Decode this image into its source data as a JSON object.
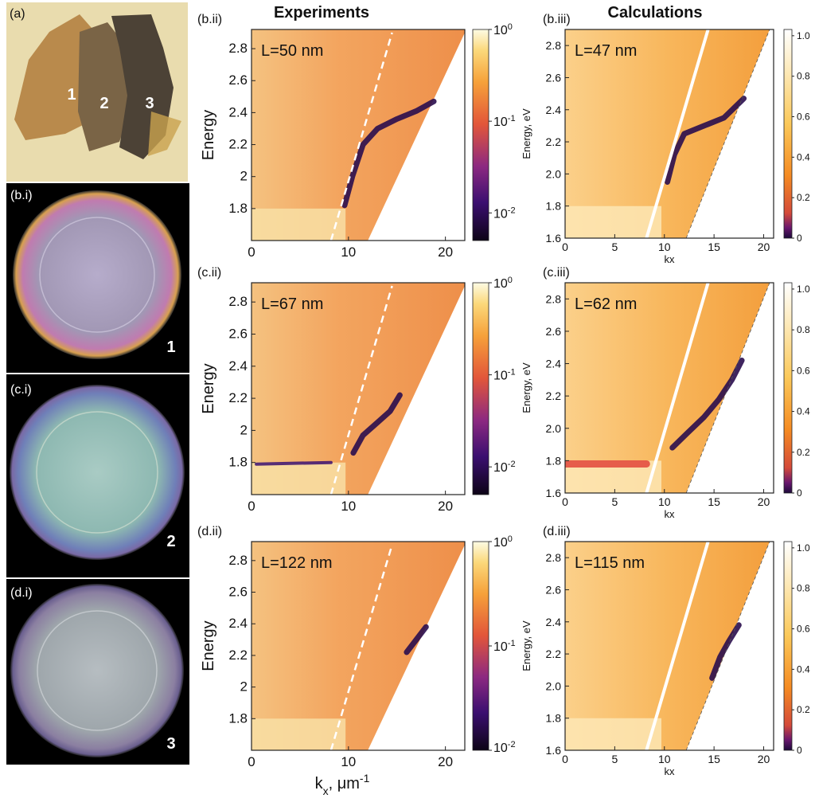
{
  "headers": {
    "experiments": "Experiments",
    "calculations": "Calculations"
  },
  "photos": [
    {
      "tag": "(a)",
      "flake_labels": [
        "1",
        "2",
        "3"
      ]
    },
    {
      "tag": "(b.i)",
      "number": "1",
      "tint": "#a79bb3"
    },
    {
      "tag": "(c.i)",
      "number": "2",
      "tint": "#8fb5ae"
    },
    {
      "tag": "(d.i)",
      "number": "3",
      "tint": "#9aa3a8"
    }
  ],
  "colorscale": {
    "log_ticks": [
      "10",
      "10",
      "10"
    ],
    "log_exponents": [
      "0",
      "-1",
      "-2"
    ],
    "linear_ticks": [
      "1.0",
      "0.8",
      "0.6",
      "0.4",
      "0.2",
      "0"
    ]
  },
  "chart_data": [
    {
      "type": "heatmap",
      "tag": "(b.ii)",
      "title": "L=50 nm",
      "xlabel": "",
      "ylabel": "Energy",
      "xlim": [
        0,
        22
      ],
      "ylim": [
        1.6,
        2.92
      ],
      "xticks": [
        "0",
        "10",
        "20"
      ],
      "yticks": [
        "1.8",
        "2",
        "2.2",
        "2.4",
        "2.6",
        "2.8"
      ],
      "colorbar": "log",
      "colorbar_range": [
        0.005,
        1
      ],
      "light_line_dashed": {
        "x": [
          8.2,
          14.5
        ],
        "y": [
          1.6,
          2.9
        ]
      },
      "mode_ridge": {
        "x": [
          9.6,
          10.4,
          11.5,
          13.0,
          15.0,
          17.0,
          18.8
        ],
        "y": [
          1.82,
          2.0,
          2.2,
          2.3,
          2.36,
          2.41,
          2.47
        ]
      }
    },
    {
      "type": "heatmap",
      "tag": "(c.ii)",
      "title": "L=67 nm",
      "xlabel": "",
      "ylabel": "Energy",
      "xlim": [
        0,
        22
      ],
      "ylim": [
        1.6,
        2.92
      ],
      "xticks": [
        "0",
        "10",
        "20"
      ],
      "yticks": [
        "1.8",
        "2",
        "2.2",
        "2.4",
        "2.6",
        "2.8"
      ],
      "colorbar": "log",
      "colorbar_range": [
        0.005,
        1
      ],
      "light_line_dashed": {
        "x": [
          8.2,
          14.5
        ],
        "y": [
          1.6,
          2.9
        ]
      },
      "mode_ridge": {
        "x": [
          10.5,
          11.5,
          13.0,
          14.3,
          15.3
        ],
        "y": [
          1.86,
          1.97,
          2.05,
          2.12,
          2.22
        ]
      },
      "flat_band": {
        "x": [
          0.5,
          8.2
        ],
        "y": [
          1.79,
          1.8
        ]
      }
    },
    {
      "type": "heatmap",
      "tag": "(d.ii)",
      "title": "L=122 nm",
      "xlabel": "k_x, μm^-1",
      "ylabel": "Energy",
      "xlim": [
        0,
        22
      ],
      "ylim": [
        1.6,
        2.92
      ],
      "xticks": [
        "0",
        "10",
        "20"
      ],
      "yticks": [
        "1.8",
        "2",
        "2.2",
        "2.4",
        "2.6",
        "2.8"
      ],
      "colorbar": "log",
      "colorbar_range": [
        0.01,
        1
      ],
      "light_line_dashed": {
        "x": [
          8.2,
          14.5
        ],
        "y": [
          1.6,
          2.9
        ]
      },
      "mode_ridge": {
        "x": [
          16.0,
          17.0,
          18.0
        ],
        "y": [
          2.22,
          2.3,
          2.38
        ]
      }
    },
    {
      "type": "heatmap",
      "tag": "(b.iii)",
      "title": "L=47 nm",
      "xlabel": "kx",
      "ylabel": "Energy, eV",
      "xlim": [
        0,
        21
      ],
      "ylim": [
        1.6,
        2.9
      ],
      "xticks": [
        "0",
        "5",
        "10",
        "15",
        "20"
      ],
      "yticks": [
        "1.6",
        "1.8",
        "2.0",
        "2.2",
        "2.4",
        "2.6",
        "2.8"
      ],
      "colorbar": "linear",
      "colorbar_range": [
        0,
        1
      ],
      "light_line_solid": {
        "x": [
          8.2,
          14.4
        ],
        "y": [
          1.6,
          2.9
        ]
      },
      "light_line_thin": {
        "x": [
          12.2,
          20.6
        ],
        "y": [
          1.6,
          2.9
        ]
      },
      "mode_ridge": {
        "x": [
          10.3,
          11.0,
          12.0,
          14.0,
          16.0,
          18.0
        ],
        "y": [
          1.95,
          2.12,
          2.25,
          2.3,
          2.35,
          2.47
        ]
      }
    },
    {
      "type": "heatmap",
      "tag": "(c.iii)",
      "title": "L=62 nm",
      "xlabel": "kx",
      "ylabel": "Energy, eV",
      "xlim": [
        0,
        21
      ],
      "ylim": [
        1.6,
        2.9
      ],
      "xticks": [
        "0",
        "5",
        "10",
        "15",
        "20"
      ],
      "yticks": [
        "1.6",
        "1.8",
        "2.0",
        "2.2",
        "2.4",
        "2.6",
        "2.8"
      ],
      "colorbar": "linear",
      "colorbar_range": [
        0,
        1
      ],
      "light_line_solid": {
        "x": [
          8.2,
          14.4
        ],
        "y": [
          1.6,
          2.9
        ]
      },
      "light_line_thin": {
        "x": [
          12.2,
          20.6
        ],
        "y": [
          1.6,
          2.9
        ]
      },
      "mode_ridge": {
        "x": [
          10.8,
          12.3,
          14.0,
          15.5,
          16.8,
          17.8
        ],
        "y": [
          1.88,
          1.97,
          2.07,
          2.18,
          2.3,
          2.42
        ]
      },
      "flat_band": {
        "x": [
          0.0,
          8.2
        ],
        "y": [
          1.78,
          1.78
        ]
      }
    },
    {
      "type": "heatmap",
      "tag": "(d.iii)",
      "title": "L=115 nm",
      "xlabel": "kx",
      "ylabel": "Energy, eV",
      "xlim": [
        0,
        21
      ],
      "ylim": [
        1.6,
        2.9
      ],
      "xticks": [
        "0",
        "5",
        "10",
        "15",
        "20"
      ],
      "yticks": [
        "1.6",
        "1.8",
        "2.0",
        "2.2",
        "2.4",
        "2.6",
        "2.8"
      ],
      "colorbar": "linear",
      "colorbar_range": [
        0,
        1
      ],
      "light_line_solid": {
        "x": [
          8.2,
          14.4
        ],
        "y": [
          1.6,
          2.9
        ]
      },
      "light_line_thin": {
        "x": [
          12.2,
          20.6
        ],
        "y": [
          1.6,
          2.9
        ]
      },
      "mode_ridge": {
        "x": [
          14.8,
          15.6,
          16.5,
          17.5
        ],
        "y": [
          2.05,
          2.18,
          2.28,
          2.38
        ]
      }
    }
  ]
}
